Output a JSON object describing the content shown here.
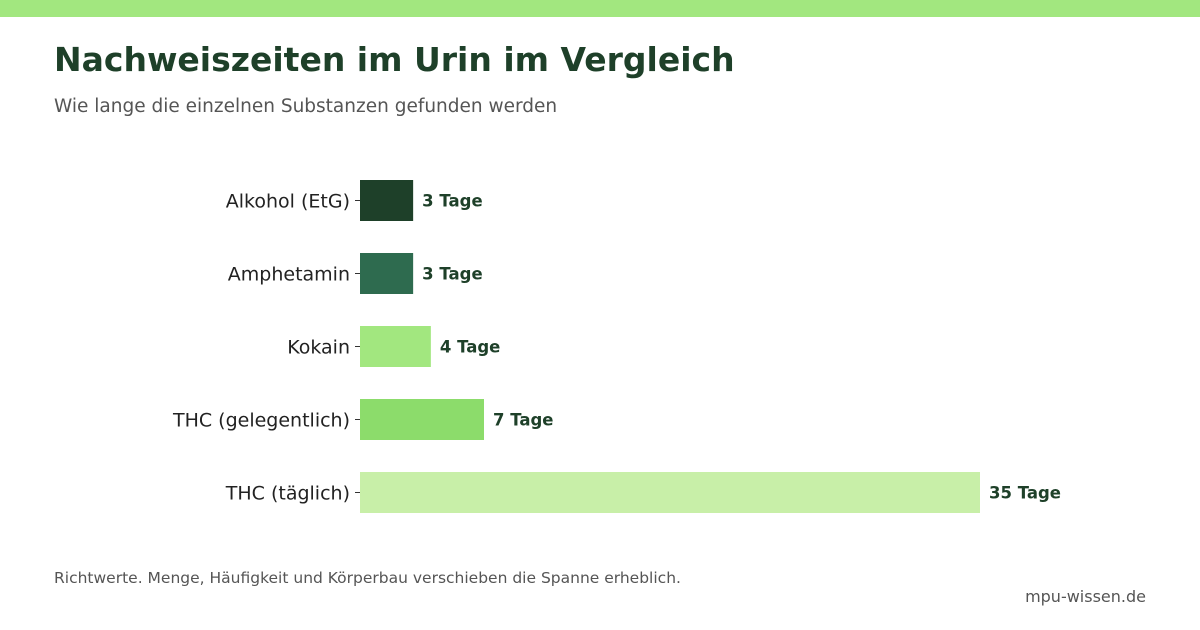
{
  "header": {
    "title": "Nachweiszeiten im Urin im Vergleich",
    "subtitle": "Wie lange die einzelnen Substanzen gefunden werden"
  },
  "footer": {
    "note": "Richtwerte. Menge, Häufigkeit und Körperbau verschieben die Spanne erheblich.",
    "source": "mpu-wissen.de"
  },
  "colors": {
    "accent_bar": "#a2e77f",
    "value_label": "#1e4029",
    "category_label": "#222222"
  },
  "chart_data": {
    "type": "bar",
    "orientation": "horizontal",
    "title": "Nachweiszeiten im Urin im Vergleich",
    "subtitle": "Wie lange die einzelnen Substanzen gefunden werden",
    "xlabel": "",
    "ylabel": "",
    "grid": false,
    "legend": "none",
    "xlim": [
      0,
      35
    ],
    "categories": [
      "Alkohol (EtG)",
      "Amphetamin",
      "Kokain",
      "THC (gelegentlich)",
      "THC (täglich)"
    ],
    "values": [
      3,
      3,
      4,
      7,
      35
    ],
    "value_labels": [
      "3 Tage",
      "3 Tage",
      "4 Tage",
      "7 Tage",
      "35 Tage"
    ],
    "bar_colors": [
      "#1e4029",
      "#2e6b4f",
      "#a2e77f",
      "#8cdc6b",
      "#c8efa8"
    ]
  }
}
